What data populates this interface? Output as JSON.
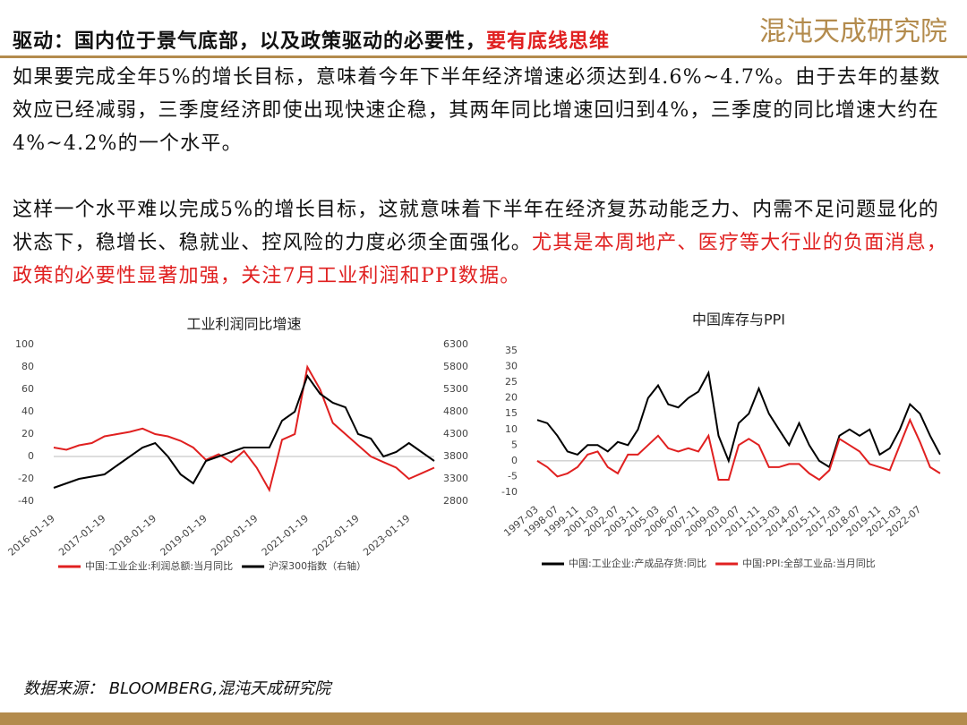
{
  "header": {
    "title": "驱动：国内位于景气底部，以及政策驱动的必要性，",
    "title_highlight": "要有底线思维",
    "logo": "混沌天成研究院"
  },
  "paragraphs": [
    {
      "text": "如果要完成全年5%的增长目标，意味着今年下半年经济增速必须达到4.6%~4.7%。由于去年的基数效应已经减弱，三季度经济即使出现快速企稳，其两年同比增速回归到4%，三季度的同比增速大约在4%~4.2%的一个水平。"
    },
    {
      "text": "这样一个水平难以完成5%的增长目标，这就意味着下半年在经济复苏动能乏力、内需不足问题显化的状态下，稳增长、稳就业、控风险的力度必须全面强化。",
      "highlight": "尤其是本周地产、医疗等大行业的负面消息，政策的必要性显著加强，关注7月工业利润和PPI数据。"
    }
  ],
  "source": "数据来源： BLOOMBERG,混沌天成研究院",
  "chart_data": [
    {
      "type": "line",
      "title": "工业利润同比增速",
      "categories": [
        "2016-01-19",
        null,
        null,
        null,
        "2017-01-19",
        null,
        null,
        null,
        "2018-01-19",
        null,
        null,
        null,
        "2019-01-19",
        null,
        null,
        null,
        "2020-01-19",
        null,
        null,
        null,
        "2021-01-19",
        null,
        null,
        null,
        "2022-01-19",
        null,
        null,
        null,
        "2023-01-19",
        null,
        null
      ],
      "series": [
        {
          "name": "中国:工业企业:利润总额:当月同比",
          "color": "#e02020",
          "values": [
            8,
            6,
            10,
            12,
            18,
            20,
            22,
            25,
            20,
            18,
            14,
            8,
            -3,
            2,
            -5,
            5,
            -10,
            -30,
            15,
            20,
            80,
            60,
            30,
            20,
            10,
            0,
            -5,
            -10,
            -20,
            -15,
            -10
          ]
        },
        {
          "name": "沪深300指数（右轴）",
          "color": "#000000",
          "axis": "y2",
          "values": [
            3100,
            3200,
            3300,
            3350,
            3400,
            3600,
            3800,
            4000,
            4100,
            3800,
            3400,
            3200,
            3700,
            3800,
            3900,
            4000,
            4000,
            4000,
            4600,
            4800,
            5600,
            5200,
            5000,
            4900,
            4300,
            4200,
            3800,
            3900,
            4100,
            3900,
            3700
          ]
        }
      ],
      "ylim": [
        -40,
        100
      ],
      "yticks": [
        -40,
        -20,
        0,
        20,
        40,
        60,
        80,
        100
      ],
      "y2lim": [
        2800,
        6300
      ],
      "y2ticks": [
        2800,
        3300,
        3800,
        4300,
        4800,
        5300,
        5800,
        6300
      ]
    },
    {
      "type": "line",
      "title": "中国库存与PPI",
      "categories": [
        "1997-03",
        null,
        "1998-07",
        null,
        "1999-11",
        null,
        "2001-03",
        null,
        "2002-07",
        null,
        "2003-11",
        null,
        "2005-03",
        null,
        "2006-07",
        null,
        "2007-11",
        null,
        "2009-03",
        null,
        "2010-07",
        null,
        "2011-11",
        null,
        "2013-03",
        null,
        "2014-07",
        null,
        "2015-11",
        null,
        "2017-03",
        null,
        "2018-07",
        null,
        "2019-11",
        null,
        "2021-03",
        null,
        "2022-07",
        null,
        null
      ],
      "series": [
        {
          "name": "中国:工业企业:产成品存货:同比",
          "color": "#000000",
          "values": [
            13,
            12,
            8,
            3,
            2,
            5,
            5,
            3,
            6,
            5,
            10,
            20,
            24,
            18,
            17,
            20,
            22,
            28,
            8,
            0,
            12,
            15,
            23,
            15,
            10,
            5,
            12,
            5,
            0,
            -2,
            8,
            10,
            8,
            10,
            2,
            4,
            10,
            18,
            15,
            8,
            2
          ]
        },
        {
          "name": "中国:PPI:全部工业品:当月同比",
          "color": "#e02020",
          "values": [
            0,
            -2,
            -5,
            -4,
            -2,
            2,
            3,
            -2,
            -4,
            2,
            2,
            5,
            8,
            4,
            3,
            4,
            3,
            8,
            -6,
            -6,
            5,
            7,
            5,
            -2,
            -2,
            -1,
            -1,
            -4,
            -6,
            -3,
            7,
            5,
            3,
            -1,
            -2,
            -3,
            5,
            13,
            6,
            -2,
            -4
          ]
        }
      ],
      "ylim": [
        -10,
        35
      ],
      "yticks": [
        -10,
        -5,
        0,
        5,
        10,
        15,
        20,
        25,
        30,
        35
      ]
    }
  ]
}
